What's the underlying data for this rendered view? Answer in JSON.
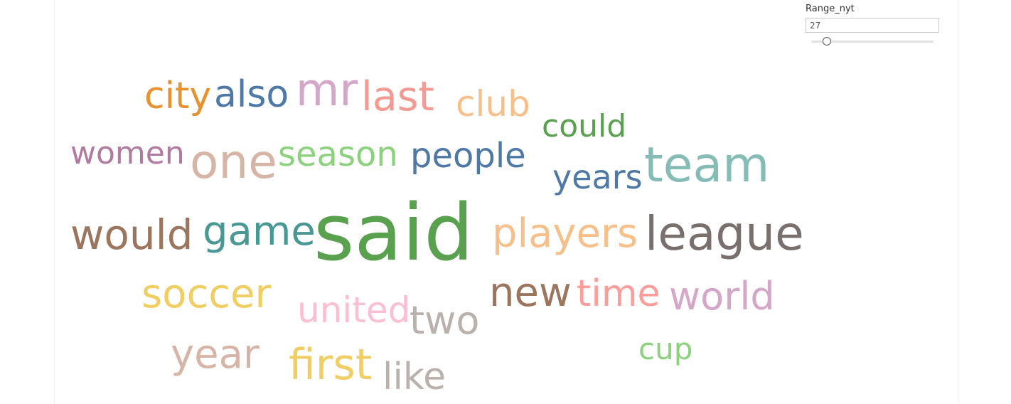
{
  "parameter": {
    "title": "Range_nyt",
    "value": "27",
    "slider_fraction": 0.13
  },
  "chart_data": {
    "type": "word_cloud",
    "words": [
      {
        "text": "city",
        "color": "#e8922f",
        "size": 52
      },
      {
        "text": "also",
        "color": "#4e79a7",
        "size": 52
      },
      {
        "text": "mr",
        "color": "#d4a6c8",
        "size": 63
      },
      {
        "text": "last",
        "color": "#f49a93",
        "size": 57
      },
      {
        "text": "club",
        "color": "#f7c08a",
        "size": 50
      },
      {
        "text": "could",
        "color": "#59a14f",
        "size": 44
      },
      {
        "text": "women",
        "color": "#b07aa1",
        "size": 44
      },
      {
        "text": "one",
        "color": "#d7b5a6",
        "size": 66
      },
      {
        "text": "season",
        "color": "#8cd17d",
        "size": 48
      },
      {
        "text": "people",
        "color": "#4e79a7",
        "size": 48
      },
      {
        "text": "years",
        "color": "#4e79a7",
        "size": 46
      },
      {
        "text": "team",
        "color": "#86bcb6",
        "size": 68
      },
      {
        "text": "would",
        "color": "#9c755f",
        "size": 58
      },
      {
        "text": "game",
        "color": "#499894",
        "size": 56
      },
      {
        "text": "said",
        "color": "#59a14f",
        "size": 110
      },
      {
        "text": "players",
        "color": "#f7c08a",
        "size": 56
      },
      {
        "text": "league",
        "color": "#79706e",
        "size": 66
      },
      {
        "text": "soccer",
        "color": "#f1ce63",
        "size": 56
      },
      {
        "text": "united",
        "color": "#fabfd2",
        "size": 50
      },
      {
        "text": "two",
        "color": "#bab0ac",
        "size": 54
      },
      {
        "text": "new",
        "color": "#9c755f",
        "size": 56
      },
      {
        "text": "time",
        "color": "#ff9d9a",
        "size": 52
      },
      {
        "text": "world",
        "color": "#d4a6c8",
        "size": 54
      },
      {
        "text": "cup",
        "color": "#8cd17d",
        "size": 42
      },
      {
        "text": "year",
        "color": "#d7b5a6",
        "size": 56
      },
      {
        "text": "first",
        "color": "#f1ce63",
        "size": 60
      },
      {
        "text": "like",
        "color": "#bab0ac",
        "size": 52
      }
    ]
  }
}
